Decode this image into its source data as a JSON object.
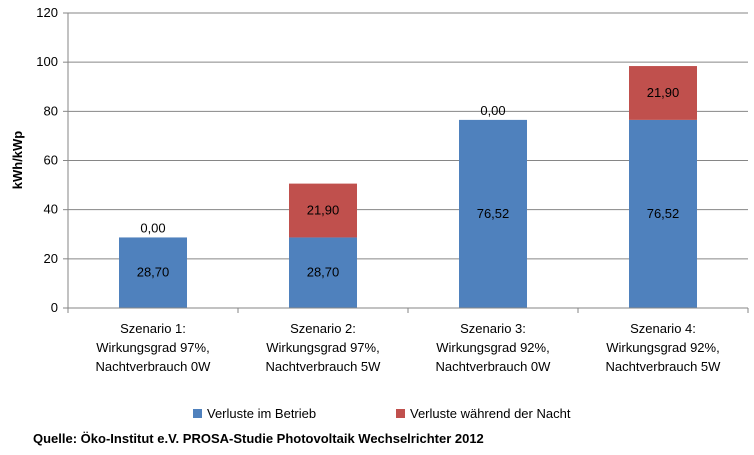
{
  "chart_data": {
    "type": "bar",
    "stacked": true,
    "ylabel": "kWh/kWp",
    "xlabel": "",
    "ylim": [
      0,
      120
    ],
    "yticks": [
      0,
      20,
      40,
      60,
      80,
      100,
      120
    ],
    "tick_labels": [
      "0",
      "20",
      "40",
      "60",
      "80",
      "100",
      "120"
    ],
    "grid": true,
    "legend_position": "bottom",
    "categories": [
      [
        "Szenario 1:",
        "Wirkungsgrad 97%,",
        "Nachtverbrauch 0W"
      ],
      [
        "Szenario 2:",
        "Wirkungsgrad  97%,",
        "Nachtverbrauch 5W"
      ],
      [
        "Szenario 3:",
        "Wirkungsgrad  92%,",
        "Nachtverbrauch 0W"
      ],
      [
        "Szenario 4:",
        "Wirkungsgrad  92%,",
        "Nachtverbrauch 5W"
      ]
    ],
    "series": [
      {
        "name": "Verluste im Betrieb",
        "color": "#4f81bd",
        "values": [
          28.7,
          28.7,
          76.52,
          76.52
        ],
        "labels": [
          "28,70",
          "28,70",
          "76,52",
          "76,52"
        ]
      },
      {
        "name": "Verluste während der Nacht",
        "color": "#c0504d",
        "values": [
          0.0,
          21.9,
          0.0,
          21.9
        ],
        "labels": [
          "0,00",
          "21,90",
          "0,00",
          "21,90"
        ]
      }
    ]
  },
  "source": "Quelle: Öko-Institut e.V. PROSA-Studie Photovoltaik Wechselrichter 2012"
}
